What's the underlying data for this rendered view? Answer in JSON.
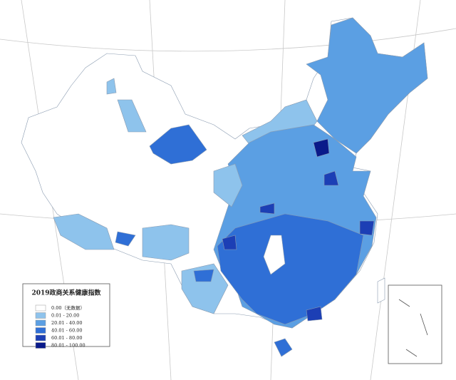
{
  "legend": {
    "title": "2019政商关系健康指数",
    "items": [
      {
        "label": "0.00（无数据）",
        "color": "#ffffff"
      },
      {
        "label": "0.01 - 20.00",
        "color": "#8ec3ec"
      },
      {
        "label": "20.01 - 40.00",
        "color": "#5b9fe3"
      },
      {
        "label": "40.01 - 60.00",
        "color": "#2f6fd6"
      },
      {
        "label": "60.01 - 80.00",
        "color": "#1c3fb5"
      },
      {
        "label": "80.01 - 100.00",
        "color": "#0a1a8a"
      }
    ]
  }
}
